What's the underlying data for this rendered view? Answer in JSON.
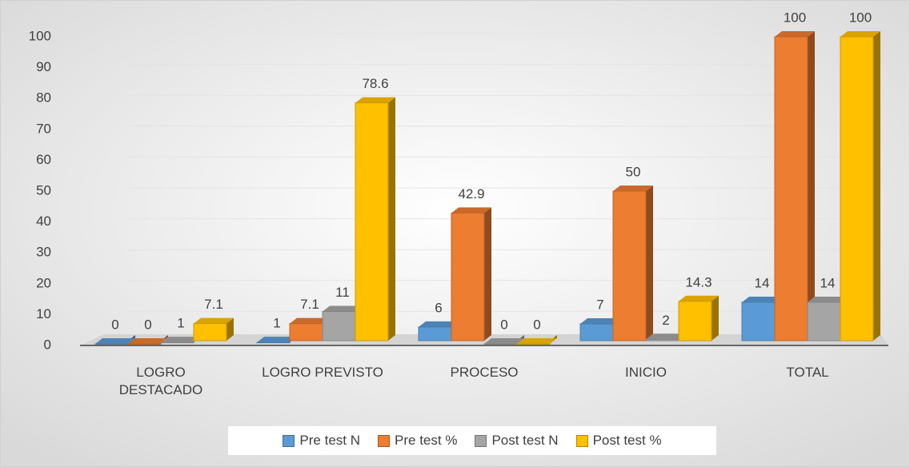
{
  "chart_data": {
    "type": "bar3d",
    "categories": [
      "LOGRO DESTACADO",
      "LOGRO PREVISTO",
      "PROCESO",
      "INICIO",
      "TOTAL"
    ],
    "series": [
      {
        "name": "Pre test N",
        "color": "#5b9bd5",
        "values": [
          0,
          1,
          6,
          7,
          14
        ]
      },
      {
        "name": "Pre test %",
        "color": "#ed7d31",
        "values": [
          0,
          7.1,
          42.9,
          50,
          100
        ]
      },
      {
        "name": "Post test N",
        "color": "#a5a5a5",
        "values": [
          1,
          11,
          0,
          2,
          14
        ]
      },
      {
        "name": "Post test %",
        "color": "#ffc000",
        "values": [
          7.1,
          78.6,
          0,
          14.3,
          100
        ]
      }
    ],
    "ylim": [
      0,
      100
    ],
    "yticks": [
      0,
      10,
      20,
      30,
      40,
      50,
      60,
      70,
      80,
      90,
      100
    ],
    "grid": true,
    "legend": "bottom"
  }
}
